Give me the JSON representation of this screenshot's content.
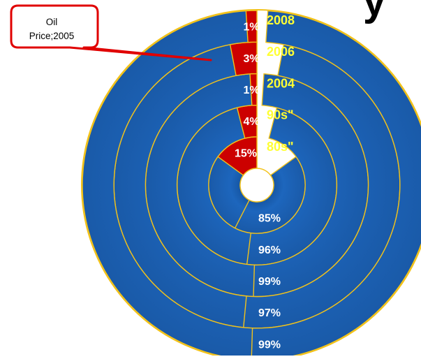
{
  "chart_data": {
    "type": "donut",
    "title": "",
    "rings": [
      {
        "category": "80s\"",
        "values": [
          15,
          85
        ],
        "labels": [
          "15%",
          "85%"
        ]
      },
      {
        "category": "90s\"",
        "values": [
          4,
          96
        ],
        "labels": [
          "4%",
          "96%"
        ]
      },
      {
        "category": "2004",
        "values": [
          1,
          99
        ],
        "labels": [
          "1%",
          "99%"
        ]
      },
      {
        "category": "2006",
        "values": [
          3,
          97
        ],
        "labels": [
          "3%",
          "97%"
        ]
      },
      {
        "category": "2008",
        "values": [
          1,
          99
        ],
        "labels": [
          "1%",
          "99%"
        ]
      }
    ],
    "colors": {
      "highlight": "#cc0000",
      "main": "#1b5fb0",
      "ring_border": "#f2c21a",
      "category_label": "#ffff33",
      "value_label": "#ffffff"
    },
    "callout": {
      "text": "Oil Price;2005",
      "line1": "Oil",
      "line2": "Price;2005",
      "border": "#e00000"
    },
    "title_fragment": "y"
  }
}
